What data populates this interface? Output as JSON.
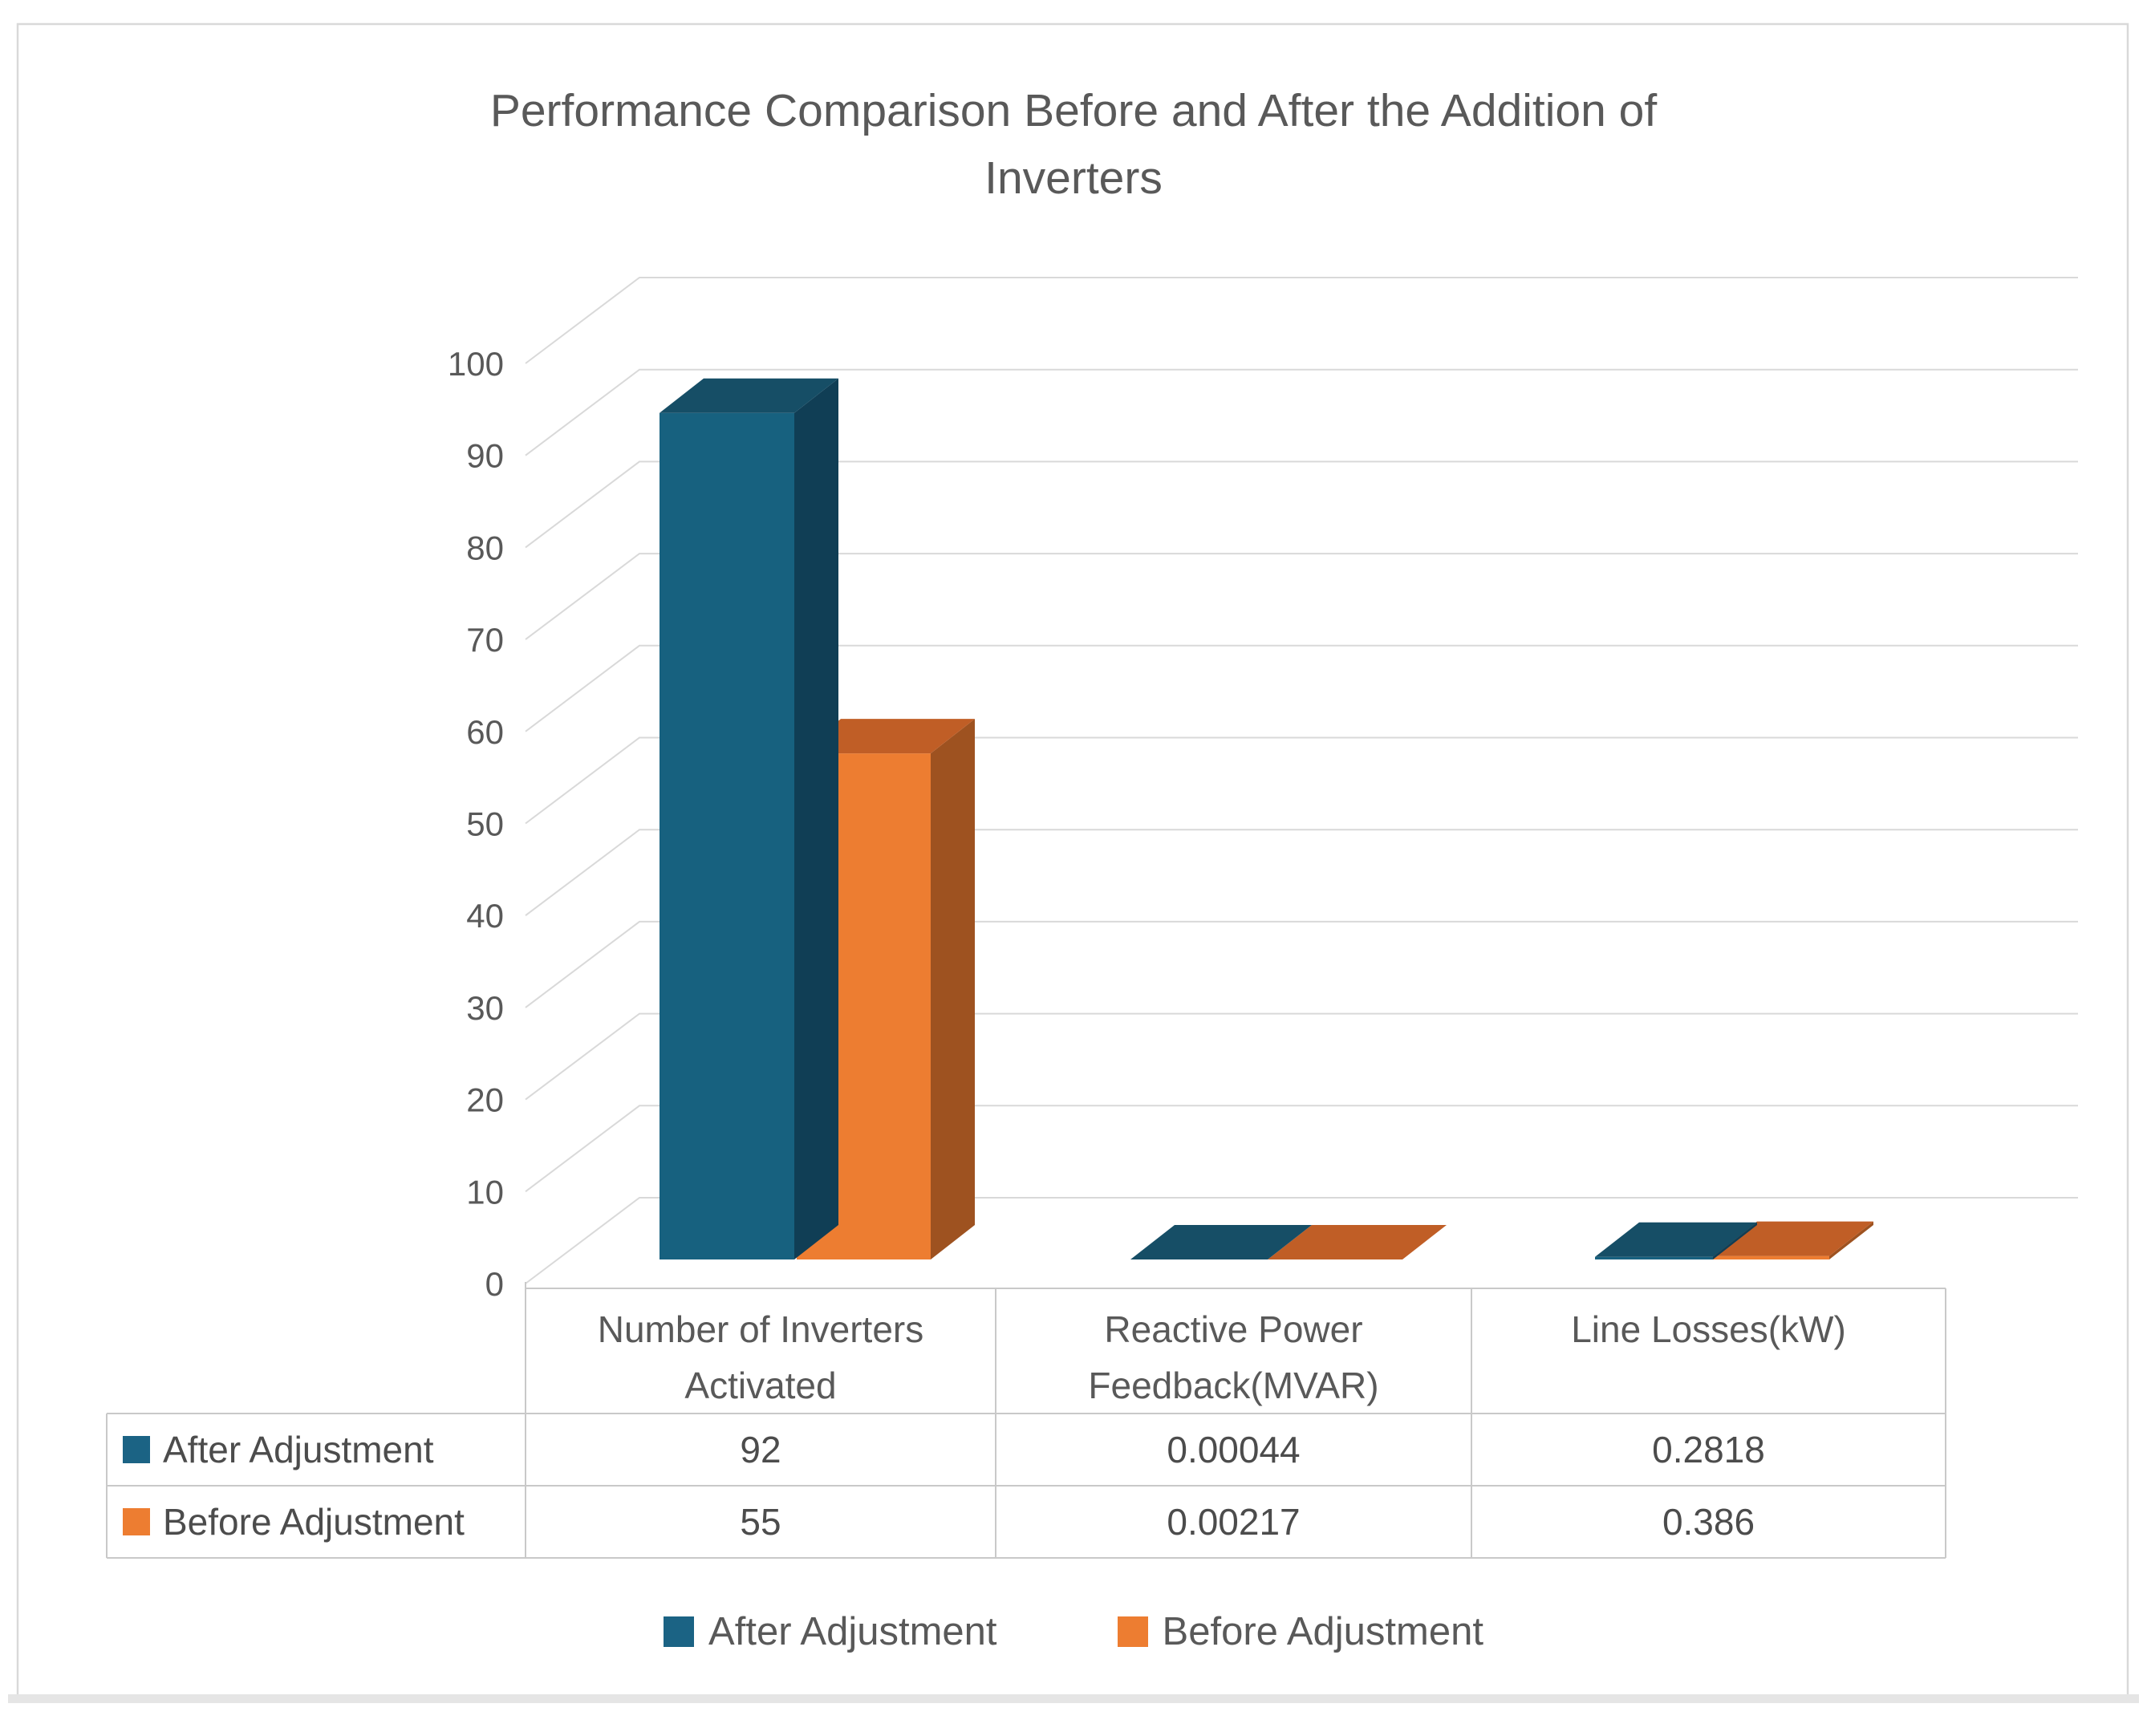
{
  "title": {
    "line1": "Performance Comparison Before and After the Addition of",
    "line2": "Inverters"
  },
  "chart_data": {
    "type": "bar",
    "style": "3d-clustered-column",
    "title": "Performance Comparison Before and After the Addition of Inverters",
    "categories": [
      "Number of Inverters Activated",
      "Reactive Power Feedback(MVAR)",
      "Line Losses(kW)"
    ],
    "series": [
      {
        "name": "After Adjustment",
        "color": "#1B6384",
        "values": [
          92,
          0.00044,
          0.2818
        ]
      },
      {
        "name": "Before Adjustment",
        "color": "#ED7D31",
        "values": [
          55,
          0.00217,
          0.386
        ]
      }
    ],
    "y_ticks": [
      0,
      10,
      20,
      30,
      40,
      50,
      60,
      70,
      80,
      90,
      100
    ],
    "ylim": [
      0,
      100
    ],
    "xlabel": "",
    "ylabel": "",
    "grid": true,
    "legend_position": "bottom",
    "data_table_shown": true
  },
  "colors": {
    "after_front": "#17617F",
    "after_top": "#164E66",
    "after_side": "#103E55",
    "before_front": "#ED7D31",
    "before_top": "#C05E26",
    "before_side": "#9E5220",
    "text": "#595959",
    "gridline": "#D9D9D9",
    "table_border": "#C9C9C9",
    "frame_border": "#D9D9D9"
  }
}
